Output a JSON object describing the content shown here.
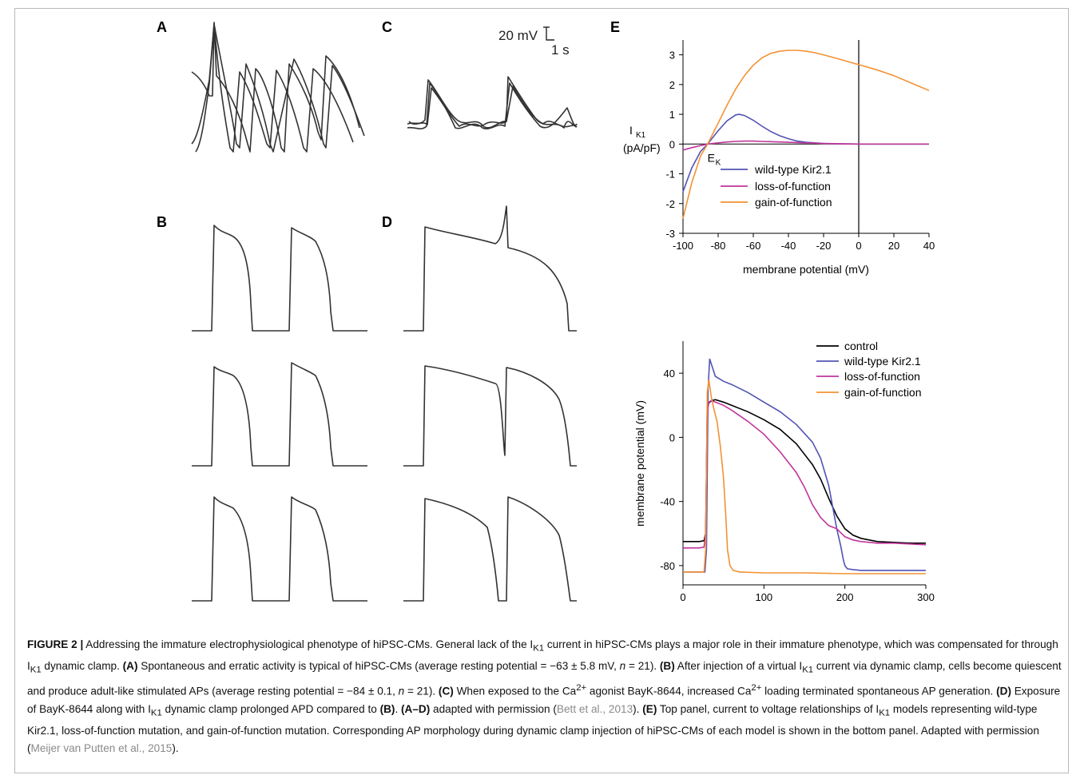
{
  "panel_labels": {
    "A": "A",
    "B": "B",
    "C": "C",
    "D": "D",
    "E": "E"
  },
  "scale_bar": {
    "v": "20 mV",
    "t": "1 s"
  },
  "chart_data": [
    {
      "type": "line",
      "title": "",
      "xlabel": "membrane potential (mV)",
      "ylabel_line1": "I",
      "ylabel_sub": "K1",
      "ylabel_line2": "(pA/pF)",
      "xlim": [
        -100,
        40
      ],
      "ylim": [
        -3,
        3.5
      ],
      "xticks": [
        -100,
        -80,
        -60,
        -40,
        -20,
        0,
        20,
        40
      ],
      "yticks": [
        -3,
        -2,
        -1,
        0,
        1,
        2,
        3
      ],
      "annotation_main": "E",
      "annotation_sub": "K",
      "annotation_x": -87,
      "legend_position": "center",
      "series": [
        {
          "name": "wild-type Kir2.1",
          "color": "#5252b5",
          "x": [
            -100,
            -95,
            -90,
            -86,
            -80,
            -75,
            -70,
            -68,
            -65,
            -60,
            -55,
            -50,
            -45,
            -40,
            -35,
            -30,
            -25,
            -20,
            -15,
            -10,
            -5,
            0,
            10,
            20,
            30,
            40
          ],
          "y": [
            -1.6,
            -0.8,
            -0.25,
            0,
            0.45,
            0.78,
            0.98,
            1.0,
            0.96,
            0.8,
            0.6,
            0.42,
            0.28,
            0.18,
            0.1,
            0.06,
            0.04,
            0.02,
            0.01,
            0.005,
            0.002,
            0,
            0,
            0,
            0,
            0
          ]
        },
        {
          "name": "loss-of-function",
          "color": "#c0369b",
          "x": [
            -100,
            -95,
            -90,
            -86,
            -80,
            -75,
            -70,
            -65,
            -60,
            -55,
            -50,
            -45,
            -40,
            -35,
            -30,
            -25,
            -20,
            -10,
            0,
            10,
            20,
            30,
            40
          ],
          "y": [
            -0.2,
            -0.12,
            -0.05,
            0,
            0.04,
            0.07,
            0.09,
            0.1,
            0.1,
            0.09,
            0.08,
            0.07,
            0.06,
            0.05,
            0.04,
            0.03,
            0.02,
            0.01,
            0,
            0,
            0,
            0,
            0
          ]
        },
        {
          "name": "gain-of-function",
          "color": "#f39234",
          "x": [
            -100,
            -95,
            -90,
            -86,
            -80,
            -75,
            -70,
            -65,
            -60,
            -55,
            -50,
            -45,
            -40,
            -35,
            -30,
            -25,
            -20,
            -15,
            -10,
            -5,
            0,
            10,
            20,
            30,
            40
          ],
          "y": [
            -2.5,
            -1.3,
            -0.4,
            0,
            0.7,
            1.3,
            1.85,
            2.3,
            2.65,
            2.9,
            3.05,
            3.12,
            3.15,
            3.15,
            3.12,
            3.07,
            3.0,
            2.92,
            2.84,
            2.75,
            2.67,
            2.5,
            2.3,
            2.05,
            1.8
          ]
        }
      ]
    },
    {
      "type": "line",
      "title": "",
      "xlabel": "",
      "ylabel": "membrane potential (mV)",
      "xlim": [
        0,
        300
      ],
      "ylim": [
        -92,
        60
      ],
      "xticks": [
        0,
        100,
        200,
        300
      ],
      "yticks": [
        -80,
        -40,
        0,
        40
      ],
      "legend_position": "top-right",
      "series": [
        {
          "name": "control",
          "color": "#000000",
          "x": [
            0,
            10,
            20,
            26,
            28,
            30,
            33,
            36,
            40,
            50,
            60,
            80,
            100,
            120,
            140,
            160,
            170,
            180,
            190,
            200,
            210,
            220,
            240,
            260,
            280,
            300
          ],
          "y": [
            -65,
            -65,
            -65,
            -64.5,
            -60,
            20,
            22,
            23,
            23.5,
            22,
            20,
            16,
            11,
            5,
            -4,
            -17,
            -26,
            -38,
            -49,
            -57,
            -61,
            -63,
            -65,
            -65.5,
            -66,
            -66
          ]
        },
        {
          "name": "wild-type Kir2.1",
          "color": "#5252b5",
          "x": [
            0,
            20,
            27,
            29,
            31,
            33,
            40,
            50,
            60,
            80,
            100,
            120,
            140,
            160,
            170,
            180,
            190,
            195,
            198,
            200,
            203,
            210,
            220,
            240,
            260,
            280,
            300
          ],
          "y": [
            -84,
            -84,
            -84,
            -70,
            30,
            49,
            38,
            35,
            33,
            28,
            22,
            16,
            8,
            -3,
            -13,
            -30,
            -57,
            -68,
            -76,
            -80,
            -82,
            -82.5,
            -83,
            -83,
            -83,
            -83,
            -83
          ]
        },
        {
          "name": "loss-of-function",
          "color": "#c0369b",
          "x": [
            0,
            20,
            26,
            28,
            30,
            32,
            35,
            40,
            50,
            60,
            80,
            100,
            120,
            140,
            150,
            160,
            170,
            180,
            190,
            200,
            210,
            220,
            240,
            260,
            280,
            300
          ],
          "y": [
            -69,
            -69,
            -68.5,
            -60,
            15,
            22,
            23,
            22,
            20,
            17,
            10,
            2,
            -9,
            -22,
            -31,
            -42,
            -50,
            -55,
            -57,
            -62,
            -64,
            -65,
            -66,
            -66,
            -66.5,
            -67
          ]
        },
        {
          "name": "gain-of-function",
          "color": "#f39234",
          "x": [
            0,
            20,
            26,
            28,
            30,
            32,
            35,
            38,
            42,
            46,
            50,
            53,
            55,
            58,
            62,
            70,
            100,
            150,
            200,
            250,
            300
          ],
          "y": [
            -84,
            -84,
            -84,
            -70,
            28,
            36,
            25,
            18,
            10,
            -5,
            -25,
            -50,
            -70,
            -80,
            -83,
            -84,
            -84.5,
            -84.5,
            -85,
            -85,
            -85
          ]
        }
      ]
    }
  ],
  "caption": {
    "lead": "FIGURE 2 |",
    "s1": " Addressing the immature electrophysiological phenotype of hiPSC-CMs. General lack of the I",
    "s1_sub": "K1",
    "s2": " current in hiPSC-CMs plays a major role in their immature phenotype, which was compensated for through I",
    "s2_sub": "K1",
    "s3": " dynamic clamp. ",
    "a_tag": "(A)",
    "a_text": " Spontaneous and erratic activity is typical of hiPSC-CMs (average resting potential = −63 ± 5.8 mV, ",
    "n_var": "n",
    "a_tail": " = 21). ",
    "b_tag": "(B)",
    "b_text1": " After injection of a virtual I",
    "b_sub": "K1",
    "b_text2": " current via dynamic clamp, cells become quiescent and produce adult-like stimulated APs (average resting potential = −84 ± 0.1, ",
    "b_n": "n",
    "b_tail": " = 21). ",
    "c_tag": "(C)",
    "c_text1": " When exposed to the Ca",
    "c_sup1": "2+",
    "c_text2": " agonist BayK-8644, increased Ca",
    "c_sup2": "2+",
    "c_text3": " loading terminated spontaneous AP generation. ",
    "d_tag": "(D)",
    "d_text1": " Exposure of BayK-8644 along with I",
    "d_sub": "K1",
    "d_text2": " dynamic clamp prolonged APD compared to ",
    "d_ref_tag": "(B)",
    "d_text3": ". ",
    "ad_tag": "(A–D)",
    "ad_text": " adapted with permission (",
    "ref1": "Bett et al., 2013",
    "ad_tail": "). ",
    "e_tag": "(E)",
    "e_text1": " Top panel, current to voltage relationships of I",
    "e_sub": "K1",
    "e_text2": " models representing wild-type Kir2.1, loss-of-function mutation, and gain-of-function mutation. Corresponding AP morphology during dynamic clamp injection of hiPSC-CMs of each model is shown in the bottom panel. Adapted with permission (",
    "ref2": "Meijer van Putten et al., 2015",
    "e_tail": ")."
  }
}
